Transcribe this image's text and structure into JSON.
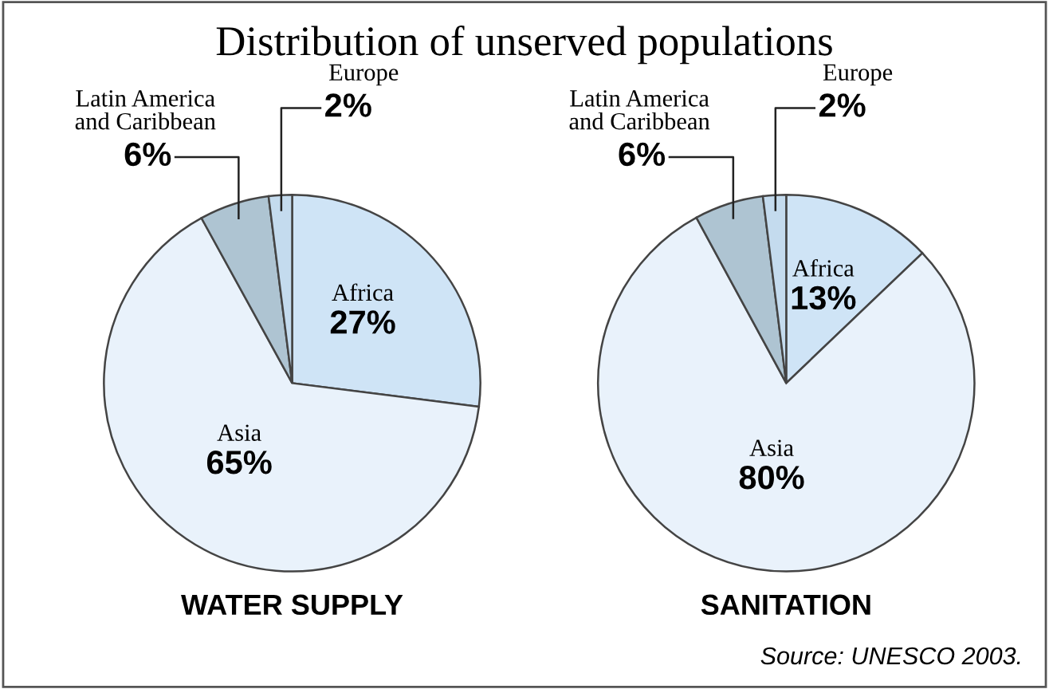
{
  "chart_data": [
    {
      "type": "pie",
      "title": "Distribution of unserved populations",
      "xlabel": "WATER SUPPLY",
      "categories": [
        "Africa",
        "Asia",
        "Latin America\nand Caribbean",
        "Europe"
      ],
      "values": [
        27,
        65,
        6,
        2
      ],
      "colors": [
        "#cfe4f6",
        "#e9f2fb",
        "#aec4d2",
        "#c4dbee"
      ],
      "value_labels": [
        "27%",
        "65%",
        "6%",
        "2%"
      ]
    },
    {
      "type": "pie",
      "xlabel": "SANITATION",
      "categories": [
        "Africa",
        "Asia",
        "Latin America\nand Caribbean",
        "Europe"
      ],
      "values": [
        13,
        80,
        6,
        2
      ],
      "colors": [
        "#cfe4f6",
        "#e9f2fb",
        "#aec4d2",
        "#c4dbee"
      ],
      "value_labels": [
        "13%",
        "80%",
        "6%",
        "2%"
      ],
      "annotations": [
        "Source: UNESCO 2003."
      ]
    }
  ]
}
